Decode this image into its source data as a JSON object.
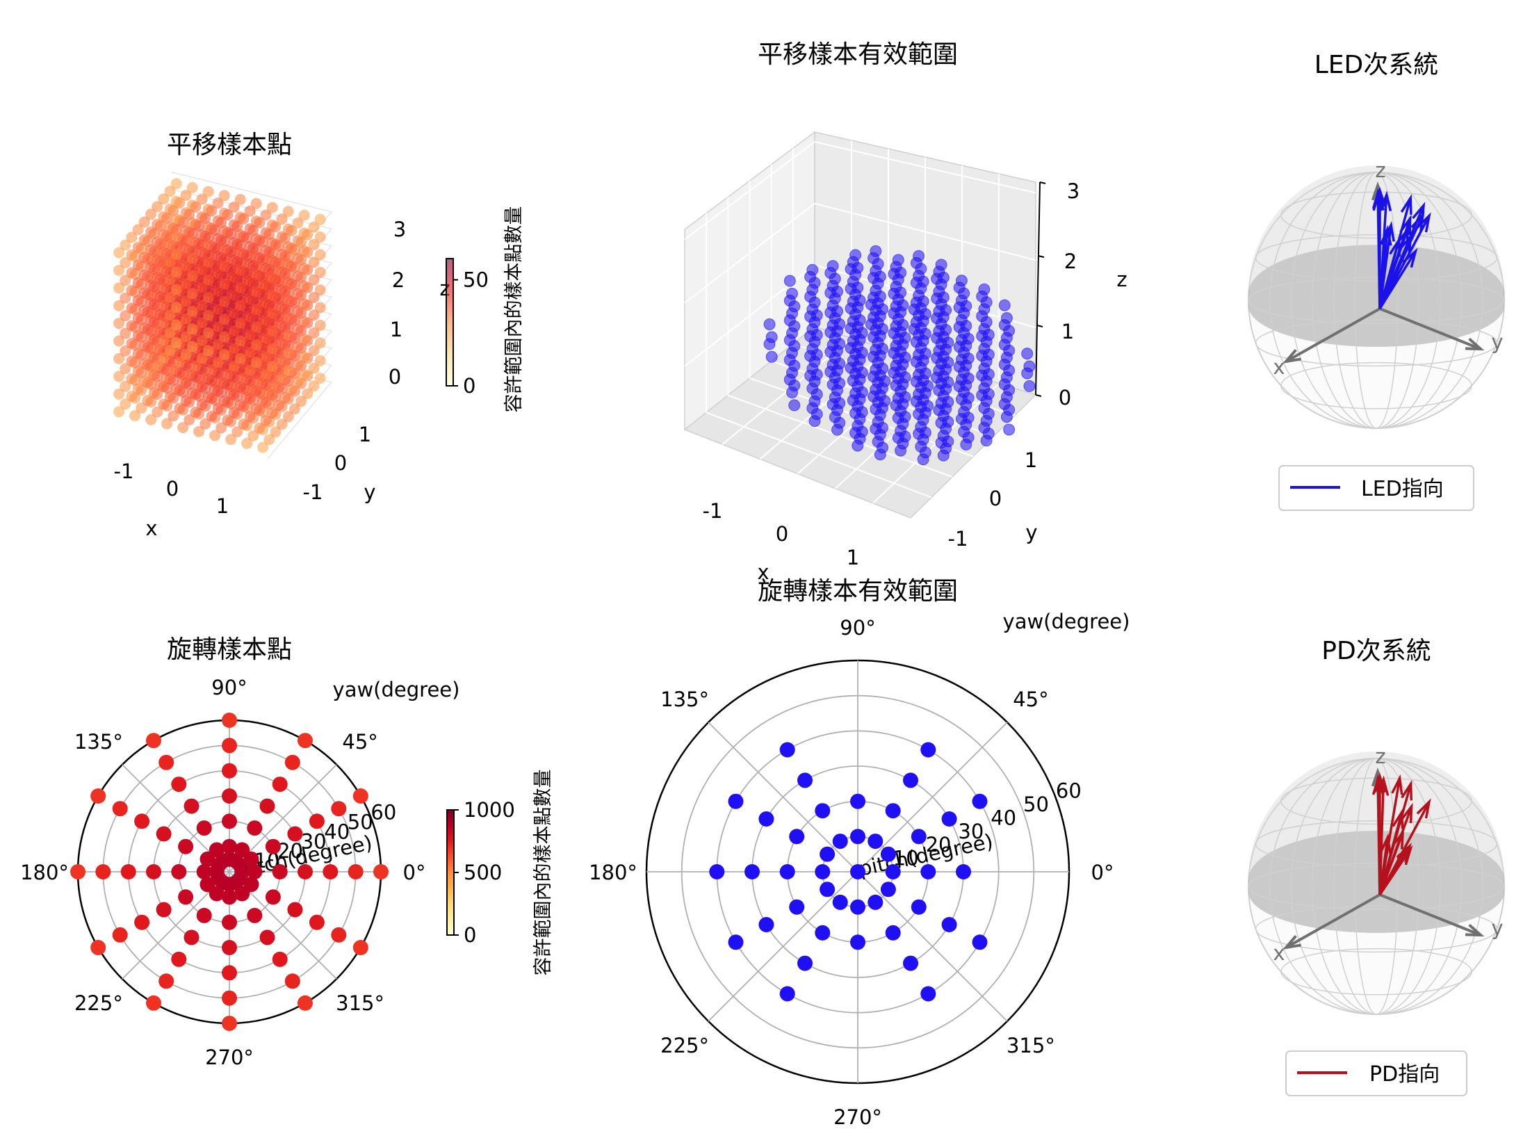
{
  "chart_data": [
    {
      "type": "scatter",
      "projection": "3d",
      "title": "平移樣本點",
      "xlabel": "x",
      "ylabel": "y",
      "zlabel": "z",
      "xlim": [
        -1.5,
        1.5
      ],
      "ylim": [
        -1.5,
        1.5
      ],
      "zlim": [
        0,
        3
      ],
      "xticks": [
        "-1",
        "0",
        "1"
      ],
      "yticks": [
        "-1",
        "0",
        "1"
      ],
      "zticks": [
        "0",
        "1",
        "2",
        "3"
      ],
      "grid": {
        "x": [
          -1.5,
          -1.2,
          -0.9,
          -0.6,
          -0.3,
          0,
          0.3,
          0.6,
          0.9,
          1.2,
          1.5
        ],
        "y": [
          -1.5,
          -1.2,
          -0.9,
          -0.6,
          -0.3,
          0,
          0.3,
          0.6,
          0.9,
          1.2,
          1.5
        ],
        "z": [
          0,
          0.3,
          0.6,
          0.9,
          1.2,
          1.5,
          1.8,
          2.1,
          2.4,
          2.7,
          3.0
        ]
      },
      "colormap": "YlOrRd",
      "colorbar": {
        "label": "容許範圍內的樣本點數量",
        "range": [
          0,
          60
        ],
        "ticks": [
          "0",
          "50"
        ]
      },
      "marker_color_hint": "#d7191c"
    },
    {
      "type": "scatter",
      "projection": "3d",
      "title": "平移樣本有效範圍",
      "xlabel": "x",
      "ylabel": "y",
      "zlabel": "z",
      "xlim": [
        -1.5,
        1.5
      ],
      "ylim": [
        -1.5,
        1.5
      ],
      "zlim": [
        0,
        3
      ],
      "xticks": [
        "-1",
        "0",
        "1"
      ],
      "yticks": [
        "-1",
        "0",
        "1"
      ],
      "zticks": [
        "0",
        "1",
        "2",
        "3"
      ],
      "grid": {
        "x": [
          -1.5,
          -1.2,
          -0.9,
          -0.6,
          -0.3,
          0,
          0.3,
          0.6,
          0.9,
          1.2,
          1.5
        ],
        "y": [
          -1.5,
          -1.2,
          -0.9,
          -0.6,
          -0.3,
          0,
          0.3,
          0.6,
          0.9,
          1.2,
          1.5
        ],
        "z": [
          0,
          0.3,
          0.6,
          0.9,
          1.2,
          1.5,
          1.8,
          2.1,
          2.4,
          2.7,
          3.0
        ]
      },
      "valid_region": "ellipsoid centered (0, 0, 1.5), radii x 1.35, y 1.3, z 1.5",
      "color": "#1f0ff5"
    },
    {
      "type": "vectors3d",
      "title": "LED次系統",
      "axes_labels": [
        "x",
        "y",
        "z"
      ],
      "legend": {
        "label": "LED指向",
        "color": "#1a12e8"
      },
      "vectors": [
        [
          0,
          0,
          1
        ],
        [
          0.06,
          0.02,
          0.99
        ],
        [
          0.1,
          0.05,
          0.98
        ],
        [
          -0.55,
          0.08,
          0.82
        ],
        [
          -0.38,
          0.06,
          0.9
        ],
        [
          -0.45,
          0.2,
          0.75
        ],
        [
          0.6,
          0.5,
          0.8
        ],
        [
          0.5,
          0.4,
          0.75
        ],
        [
          0.4,
          0.45,
          0.65
        ],
        [
          0.22,
          0.42,
          0.72
        ],
        [
          0.42,
          0.7,
          0.88
        ],
        [
          0.48,
          0.62,
          0.7
        ],
        [
          0.3,
          0.55,
          0.55
        ],
        [
          0.02,
          0.08,
          0.97
        ],
        [
          0.12,
          0.38,
          0.8
        ]
      ]
    },
    {
      "type": "scatter",
      "projection": "polar",
      "title": "旋轉樣本點",
      "angle_label": "yaw(degree)",
      "radius_label": "pitch(degree)",
      "theta_ticks": [
        "0°",
        "45°",
        "90°",
        "135°",
        "180°",
        "225°",
        "270°",
        "315°"
      ],
      "r_ticks": [
        "10",
        "20",
        "30",
        "40",
        "50",
        "60"
      ],
      "rlim": [
        0,
        60
      ],
      "yaw": [
        0,
        30,
        60,
        90,
        120,
        150,
        180,
        210,
        240,
        270,
        300,
        330
      ],
      "pitch": [
        5,
        10,
        20,
        30,
        40,
        50,
        60
      ],
      "colormap": "YlOrRd",
      "colorbar": {
        "label": "容許範圍內的樣本點數量",
        "range": [
          0,
          1000
        ],
        "ticks": [
          "0",
          "500",
          "1000"
        ]
      }
    },
    {
      "type": "scatter",
      "projection": "polar",
      "title": "旋轉樣本有效範圍",
      "angle_label": "yaw(degree)",
      "radius_label": "pitch(degree)",
      "theta_ticks": [
        "0°",
        "45°",
        "90°",
        "135°",
        "180°",
        "225°",
        "270°",
        "315°"
      ],
      "r_ticks": [
        "10",
        "20",
        "30",
        "40",
        "50",
        "60"
      ],
      "rlim": [
        0,
        60
      ],
      "color": "#1f0ff5",
      "points": [
        {
          "yaw": 0,
          "pitch": [
            0,
            10,
            20,
            30
          ]
        },
        {
          "yaw": 30,
          "pitch": [
            10,
            20,
            30,
            40
          ]
        },
        {
          "yaw": 60,
          "pitch": [
            10,
            20,
            30,
            40
          ]
        },
        {
          "yaw": 90,
          "pitch": [
            10,
            20
          ]
        },
        {
          "yaw": 120,
          "pitch": [
            10,
            20,
            30,
            40
          ]
        },
        {
          "yaw": 150,
          "pitch": [
            10,
            20,
            30,
            40
          ]
        },
        {
          "yaw": 180,
          "pitch": [
            10,
            20,
            30,
            40
          ]
        },
        {
          "yaw": 210,
          "pitch": [
            10,
            20,
            30,
            40
          ]
        },
        {
          "yaw": 240,
          "pitch": [
            10,
            20,
            30,
            40
          ]
        },
        {
          "yaw": 270,
          "pitch": [
            10,
            20
          ]
        },
        {
          "yaw": 300,
          "pitch": [
            10,
            20,
            30,
            40
          ]
        },
        {
          "yaw": 330,
          "pitch": [
            10,
            20,
            30,
            40
          ]
        }
      ]
    },
    {
      "type": "vectors3d",
      "title": "PD次系統",
      "axes_labels": [
        "x",
        "y",
        "z"
      ],
      "legend": {
        "label": "PD指向",
        "color": "#b5111c"
      },
      "vectors": [
        [
          0,
          0,
          1
        ],
        [
          0.06,
          0.02,
          0.99
        ],
        [
          -0.4,
          0.05,
          0.9
        ],
        [
          -0.45,
          0.2,
          0.75
        ],
        [
          -0.12,
          0.12,
          0.98
        ],
        [
          0.1,
          0.38,
          0.78
        ],
        [
          0.62,
          0.62,
          0.8
        ],
        [
          0.42,
          0.5,
          0.6
        ],
        [
          0.3,
          0.5,
          0.45
        ],
        [
          0.5,
          0.62,
          0.5
        ],
        [
          0.42,
          0.35,
          0.55
        ],
        [
          0.02,
          0.05,
          0.98
        ]
      ]
    }
  ]
}
